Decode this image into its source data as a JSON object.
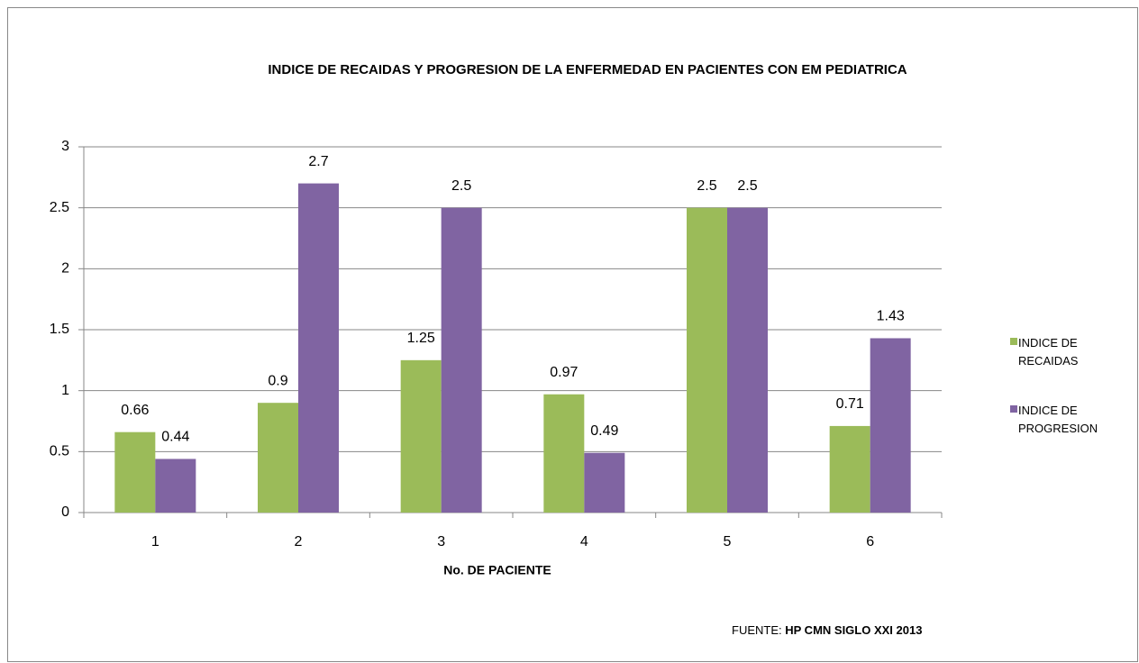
{
  "chart_data": {
    "type": "bar",
    "title": "INDICE DE RECAIDAS Y PROGRESION DE LA ENFERMEDAD EN PACIENTES CON EM PEDIATRICA",
    "xlabel": "No. DE PACIENTE",
    "categories": [
      "1",
      "2",
      "3",
      "4",
      "5",
      "6"
    ],
    "series": [
      {
        "name": "INDICE DE RECAIDAS",
        "color": "#9bbb59",
        "values": [
          0.66,
          0.9,
          1.25,
          0.97,
          2.5,
          0.71
        ]
      },
      {
        "name": "INDICE DE PROGRESION",
        "color": "#8064a2",
        "values": [
          0.44,
          2.7,
          2.5,
          0.49,
          2.5,
          1.43
        ]
      }
    ],
    "ylim": [
      0,
      3
    ],
    "yticks": [
      0,
      0.5,
      1,
      1.5,
      2,
      2.5,
      3
    ],
    "grid": true,
    "legend": "right",
    "source": {
      "label": "FUENTE:",
      "text": "HP CMN SIGLO XXI 2013"
    }
  }
}
